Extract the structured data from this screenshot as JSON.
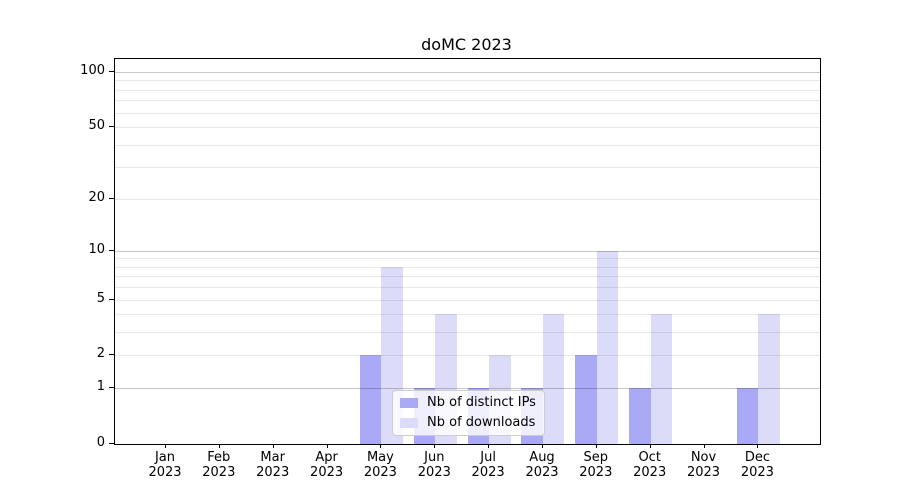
{
  "title": "doMC 2023",
  "chart_data": {
    "type": "bar",
    "title": "doMC 2023",
    "categories": [
      "Jan 2023",
      "Feb 2023",
      "Mar 2023",
      "Apr 2023",
      "May 2023",
      "Jun 2023",
      "Jul 2023",
      "Aug 2023",
      "Sep 2023",
      "Oct 2023",
      "Nov 2023",
      "Dec 2023"
    ],
    "series": [
      {
        "name": "Nb of distinct IPs",
        "values": [
          0,
          0,
          0,
          0,
          2,
          1,
          1,
          1,
          2,
          1,
          0,
          1
        ],
        "color": "#a9a9f5"
      },
      {
        "name": "Nb of downloads",
        "values": [
          0,
          0,
          0,
          0,
          8,
          4,
          2,
          4,
          10,
          4,
          0,
          4
        ],
        "color": "#dcdcf8"
      }
    ],
    "yscale": "log1p",
    "yticks": [
      0,
      1,
      2,
      5,
      10,
      20,
      50,
      100
    ],
    "ylim": [
      0,
      118
    ],
    "xlabel": "",
    "ylabel": "",
    "grid": "horizontal",
    "grid_major_at": [
      1,
      10,
      100
    ],
    "legend_position": "lower-center-inside"
  },
  "legend": {
    "items": [
      {
        "label": "Nb of distinct IPs",
        "color": "#a9a9f5"
      },
      {
        "label": "Nb of downloads",
        "color": "#dcdcf8"
      }
    ]
  }
}
